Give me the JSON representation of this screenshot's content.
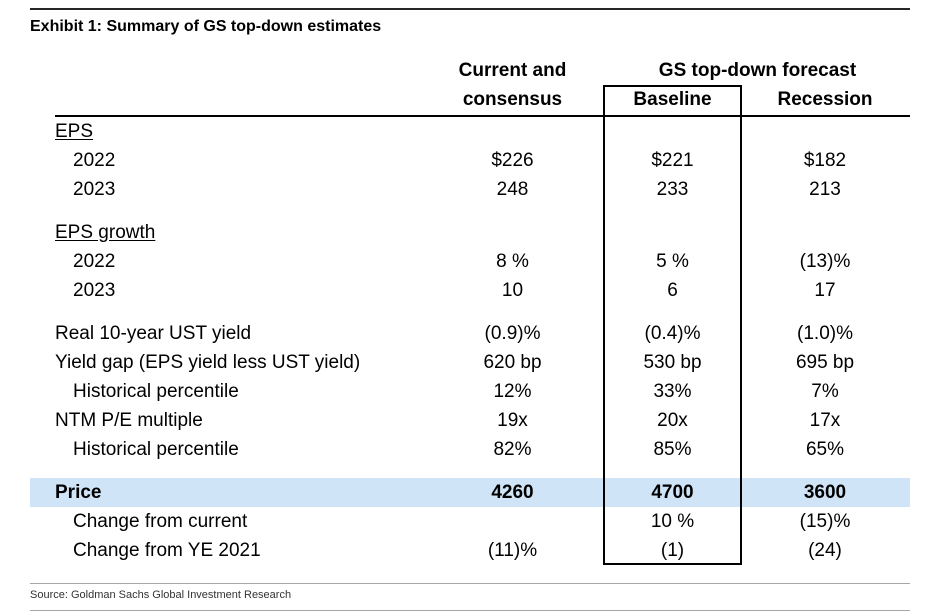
{
  "title": "Exhibit 1: Summary of GS top-down estimates",
  "source": "Source: Goldman Sachs Global Investment Research",
  "header": {
    "current_line1": "Current and",
    "current_line2": "consensus",
    "group_label": "GS top-down forecast",
    "baseline_label": "Baseline",
    "recession_label": "Recession"
  },
  "colors": {
    "highlight_row_bg": "#cfe4f6",
    "baseline_box_border": "#000000",
    "top_rule": "#262626",
    "source_rule": "#a6a6a6"
  },
  "rows": [
    {
      "type": "section",
      "label": "EPS"
    },
    {
      "type": "data",
      "indent": true,
      "label": "2022",
      "current": "$226",
      "baseline": "$221",
      "recession": "$182"
    },
    {
      "type": "data",
      "indent": true,
      "label": "2023",
      "current": "248",
      "baseline": "233",
      "recession": "213"
    },
    {
      "type": "spacer"
    },
    {
      "type": "section",
      "label": "EPS growth"
    },
    {
      "type": "data",
      "indent": true,
      "label": "2022",
      "current": "8 %",
      "baseline": "5 %",
      "recession": "(13)%"
    },
    {
      "type": "data",
      "indent": true,
      "label": "2023",
      "current": "10",
      "baseline": "6",
      "recession": "17"
    },
    {
      "type": "spacer"
    },
    {
      "type": "data",
      "label": "Real 10-year UST yield",
      "current": "(0.9)%",
      "baseline": "(0.4)%",
      "recession": "(1.0)%"
    },
    {
      "type": "data",
      "label": "Yield gap (EPS yield less UST yield)",
      "current": "620 bp",
      "baseline": "530 bp",
      "recession": "695 bp"
    },
    {
      "type": "data",
      "indent": true,
      "label": "Historical percentile",
      "current": "12%",
      "baseline": "33%",
      "recession": "7%"
    },
    {
      "type": "data",
      "label": "NTM P/E multiple",
      "current": "19x",
      "baseline": "20x",
      "recession": "17x"
    },
    {
      "type": "data",
      "indent": true,
      "label": "Historical percentile",
      "current": "82%",
      "baseline": "85%",
      "recession": "65%"
    },
    {
      "type": "spacer"
    },
    {
      "type": "highlight",
      "label": "Price",
      "current": "4260",
      "baseline": "4700",
      "recession": "3600"
    },
    {
      "type": "data",
      "indent": true,
      "label": "Change from current",
      "current": "",
      "baseline": "10 %",
      "recession": "(15)%"
    },
    {
      "type": "data",
      "indent": true,
      "label": "Change from YE 2021",
      "current": "(11)%",
      "baseline": "(1)",
      "recession": "(24)"
    }
  ],
  "chart_data": {
    "type": "table",
    "title": "Exhibit 1: Summary of GS top-down estimates",
    "column_group": {
      "label": "GS top-down forecast",
      "spans": [
        "Baseline",
        "Recession"
      ]
    },
    "columns": [
      "",
      "Current and consensus",
      "Baseline",
      "Recession"
    ],
    "rows": [
      [
        "EPS 2022",
        "$226",
        "$221",
        "$182"
      ],
      [
        "EPS 2023",
        "248",
        "233",
        "213"
      ],
      [
        "EPS growth 2022",
        "8 %",
        "5 %",
        "(13)%"
      ],
      [
        "EPS growth 2023",
        "10",
        "6",
        "17"
      ],
      [
        "Real 10-year UST yield",
        "(0.9)%",
        "(0.4)%",
        "(1.0)%"
      ],
      [
        "Yield gap (EPS yield less UST yield)",
        "620 bp",
        "530 bp",
        "695 bp"
      ],
      [
        "Historical percentile",
        "12%",
        "33%",
        "7%"
      ],
      [
        "NTM P/E multiple",
        "19x",
        "20x",
        "17x"
      ],
      [
        "Historical percentile",
        "82%",
        "85%",
        "65%"
      ],
      [
        "Price",
        "4260",
        "4700",
        "3600"
      ],
      [
        "Change from current",
        "",
        "10 %",
        "(15)%"
      ],
      [
        "Change from YE 2021",
        "(11)%",
        "(1)",
        "(24)"
      ]
    ],
    "highlighted_row": "Price",
    "source": "Source: Goldman Sachs Global Investment Research"
  }
}
